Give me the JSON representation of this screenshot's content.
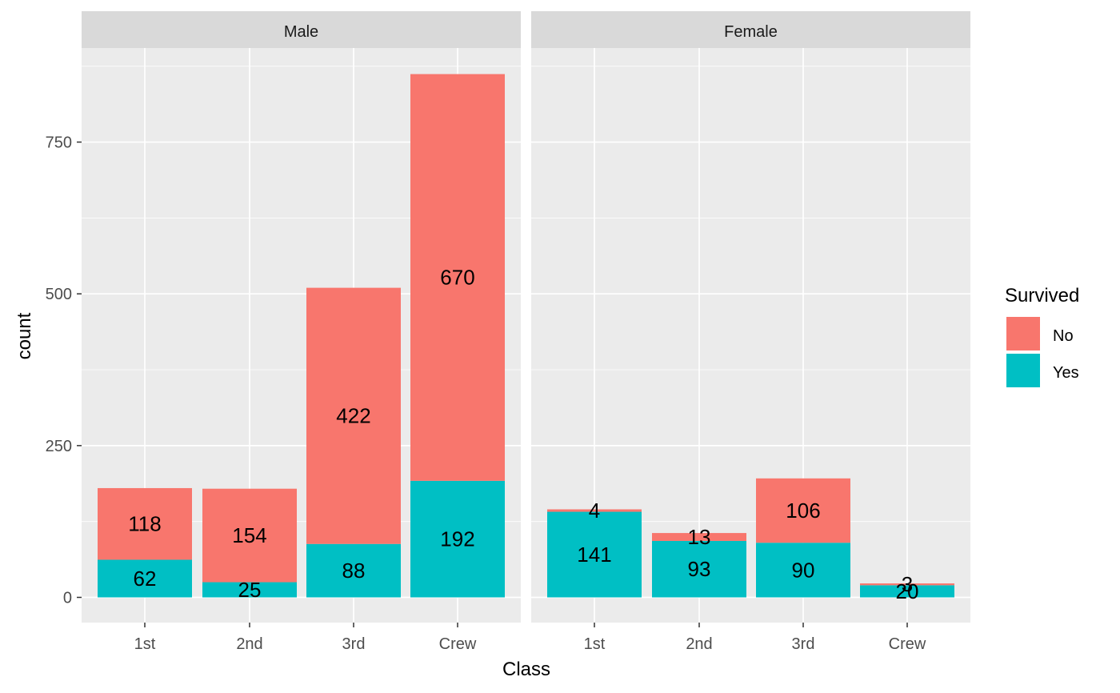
{
  "chart_data": {
    "type": "bar",
    "stacked": true,
    "facet_by": [
      "Male",
      "Female"
    ],
    "xlabel": "Class",
    "ylabel": "count",
    "categories": [
      "1st",
      "2nd",
      "3rd",
      "Crew"
    ],
    "y_ticks": [
      0,
      250,
      500,
      750
    ],
    "ylim": [
      0,
      900
    ],
    "legend_title": "Survived",
    "legend_position": "right",
    "grid": true,
    "series": [
      {
        "name": "No",
        "color": "#F8766D"
      },
      {
        "name": "Yes",
        "color": "#00BFC4"
      }
    ],
    "panels": [
      {
        "label": "Male",
        "values": {
          "No": [
            118,
            154,
            422,
            670
          ],
          "Yes": [
            62,
            25,
            88,
            192
          ]
        }
      },
      {
        "label": "Female",
        "values": {
          "No": [
            4,
            13,
            106,
            3
          ],
          "Yes": [
            141,
            93,
            90,
            20
          ]
        }
      }
    ]
  }
}
